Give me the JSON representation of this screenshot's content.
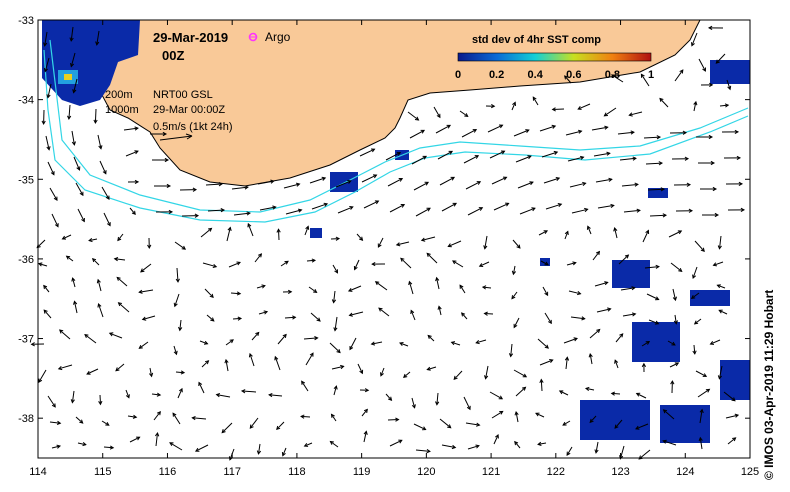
{
  "title": {
    "date": "29-Mar-2019",
    "time": "00Z",
    "argo_label": "Argo"
  },
  "colorbar": {
    "title": "std dev of 4hr SST comp",
    "ticks": [
      "0",
      "0.2",
      "0.4",
      "0.6",
      "0.8",
      "1"
    ]
  },
  "legend": {
    "contour_200": "200m",
    "contour_1000": "1000m",
    "product": "NRT00 GSL",
    "product_time": "29-Mar 00:00Z",
    "vector_scale": "0.5m/s (1kt 24h)"
  },
  "credit": "© IMOS 03-Apr-2019 11:29 Hobart",
  "colors": {
    "land": "#f9c998",
    "bathymetry": "#33d6e6",
    "argo": "#ff33ff",
    "sst_low": "#0a2aa8"
  },
  "chart_data": {
    "type": "map",
    "lon_range": [
      114,
      125
    ],
    "lat_range": [
      -38.5,
      -33
    ],
    "x_ticks": [
      114,
      115,
      116,
      117,
      118,
      119,
      120,
      121,
      122,
      123,
      124,
      125
    ],
    "y_ticks": [
      -33,
      -34,
      -35,
      -36,
      -37,
      -38
    ],
    "vector_scale_ms": 0.5
  }
}
